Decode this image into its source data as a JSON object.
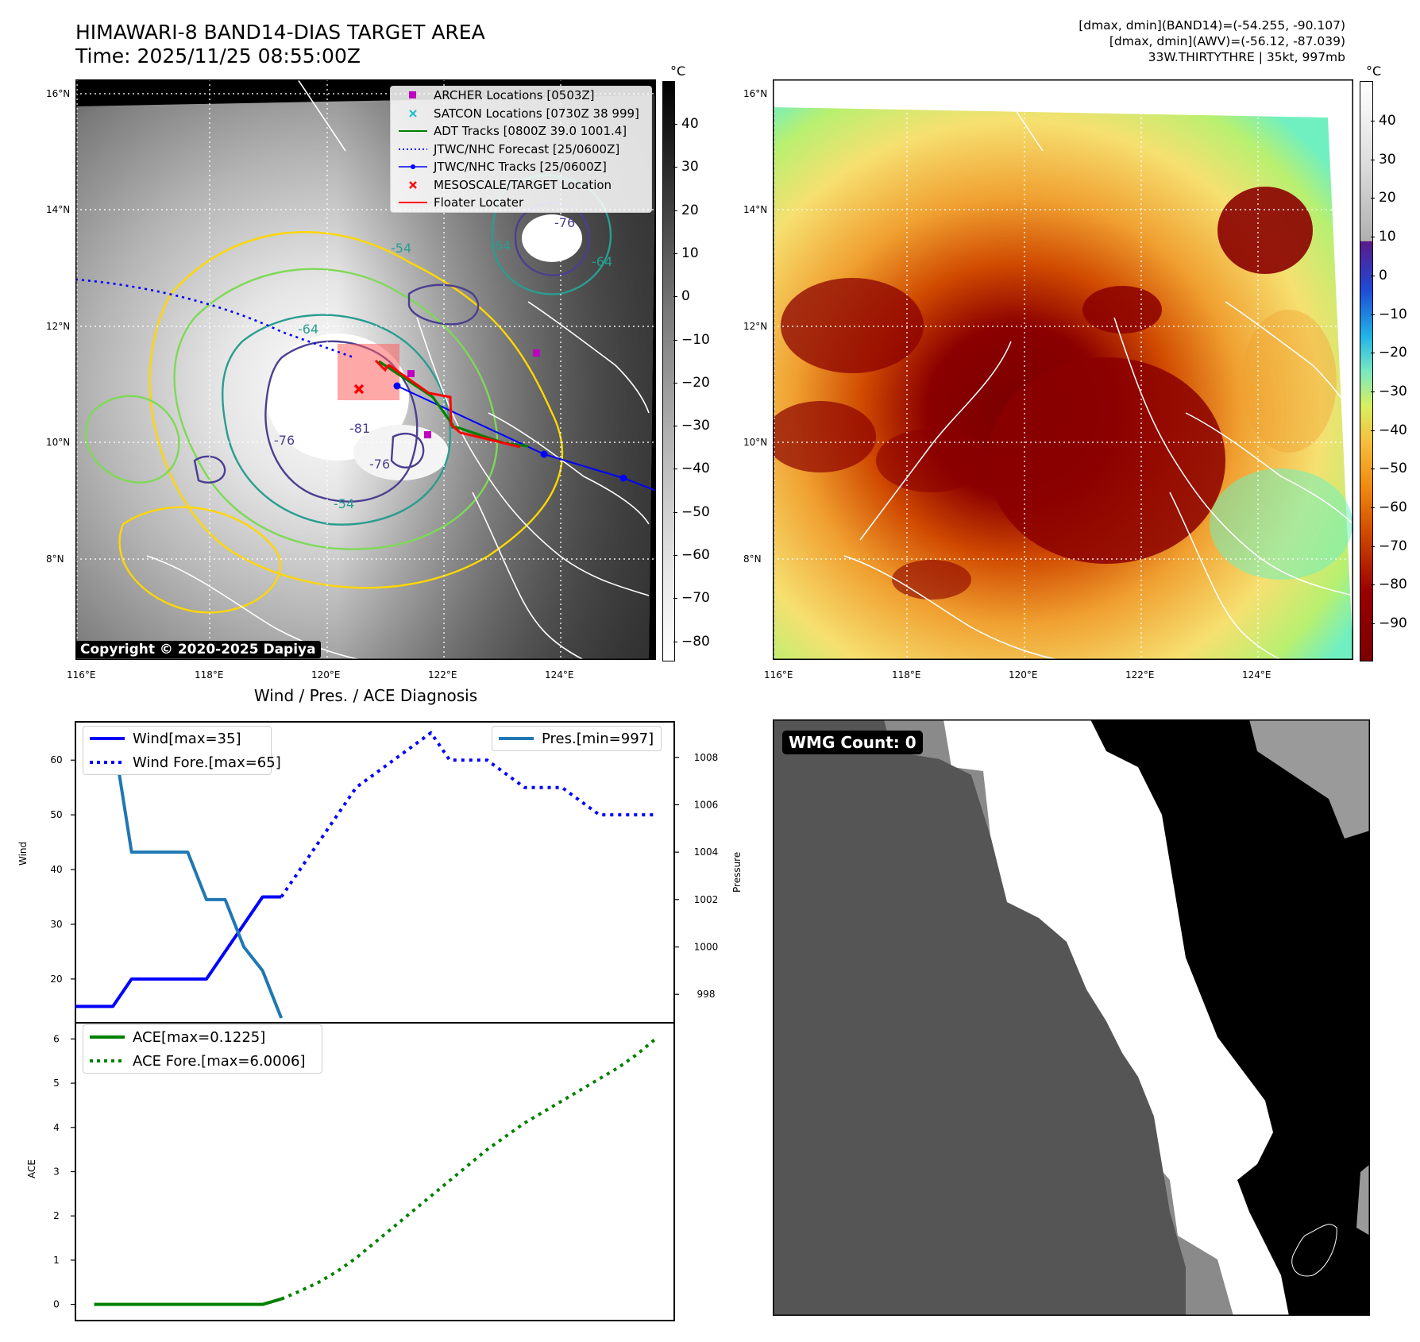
{
  "header": {
    "title_line1": "HIMAWARI-8 BAND14-DIAS TARGET AREA",
    "title_line2": "Time: 2025/11/25 08:55:00Z",
    "info_line1": "[dmax, dmin](BAND14)=(-54.255, -90.107)",
    "info_line2": "[dmax, dmin](AWV)=(-56.12, -87.039)",
    "info_line3": "33W.THIRTYTHRE | 35kt, 997mb"
  },
  "map_axes": {
    "lat_ticks": [
      "16°N",
      "14°N",
      "12°N",
      "10°N",
      "8°N"
    ],
    "lon_ticks": [
      "116°E",
      "118°E",
      "120°E",
      "122°E",
      "124°E"
    ]
  },
  "band14_panel": {
    "copyright": "Copyright © 2020-2025 Dapiya",
    "colorbar_unit": "°C",
    "colorbar_ticks": [
      "40",
      "30",
      "20",
      "10",
      "0",
      "−10",
      "−20",
      "−30",
      "−40",
      "−50",
      "−60",
      "−70",
      "−80"
    ],
    "contour_labels": [
      "-54",
      "-64",
      "-76",
      "-81",
      "-76",
      "-54",
      "-76",
      "-64",
      "-64"
    ],
    "legend": [
      {
        "label": "ARCHER Locations [0503Z]",
        "color": "#bf00bf",
        "marker": "square"
      },
      {
        "label": "SATCON Locations [0730Z 38 999]",
        "color": "#17becf",
        "marker": "x"
      },
      {
        "label": "ADT Tracks [0800Z 39.0 1001.4]",
        "color": "#008000",
        "marker": "line"
      },
      {
        "label": "JTWC/NHC Forecast [25/0600Z]",
        "color": "#0000ff",
        "marker": "dotted"
      },
      {
        "label": "JTWC/NHC Tracks [25/0600Z]",
        "color": "#0000ff",
        "marker": "line-dot"
      },
      {
        "label": "MESOSCALE/TARGET Location",
        "color": "#ff0000",
        "marker": "x"
      },
      {
        "label": "Floater Locater",
        "color": "#ff0000",
        "marker": "line"
      }
    ]
  },
  "awv_panel": {
    "colorbar_unit": "°C",
    "colorbar_ticks": [
      "40",
      "30",
      "20",
      "10",
      "0",
      "−10",
      "−20",
      "−30",
      "−40",
      "−50",
      "−60",
      "−70",
      "−80",
      "−90"
    ]
  },
  "wmg_panel": {
    "count_label": "WMG Count: 0"
  },
  "chart_data": [
    {
      "type": "line",
      "title": "Wind / Pres. / ACE Diagnosis",
      "ylabel": "Wind",
      "ylabel_right": "Pressure",
      "ylim": [
        12,
        67
      ],
      "ylim_right": [
        996.8,
        1009.5
      ],
      "yticks": [
        20,
        30,
        40,
        50,
        60
      ],
      "yticks_right": [
        998,
        1000,
        1002,
        1004,
        1006,
        1008
      ],
      "x": [
        0,
        1,
        2,
        3,
        4,
        5,
        6,
        7,
        8,
        9,
        10,
        11,
        12,
        13,
        14,
        15,
        16,
        17,
        18,
        19,
        20,
        21,
        22,
        23,
        24,
        25,
        26,
        27,
        28,
        29,
        30,
        31
      ],
      "series": [
        {
          "name": "Wind[max=35]",
          "color": "#0000ff",
          "style": "solid",
          "x": [
            0,
            1,
            2,
            3,
            4,
            5,
            6,
            7,
            8,
            9,
            10,
            11
          ],
          "values": [
            15,
            15,
            15,
            20,
            20,
            20,
            20,
            20,
            25,
            30,
            35,
            35
          ]
        },
        {
          "name": "Wind Fore.[max=65]",
          "color": "#0000ff",
          "style": "dotted",
          "x": [
            11,
            12,
            13,
            14,
            15,
            16,
            17,
            18,
            19,
            20,
            21,
            22,
            23,
            24,
            25,
            26,
            27,
            28,
            29,
            30,
            31
          ],
          "values": [
            35,
            40,
            45,
            50,
            55,
            57.5,
            60,
            62.5,
            65,
            60,
            60,
            60,
            57.5,
            55,
            55,
            55,
            52.5,
            50,
            50,
            50,
            50
          ]
        },
        {
          "name": "Pres.[min=997]",
          "color": "#1f77b4",
          "style": "solid",
          "axis": "right",
          "x": [
            1,
            2,
            3,
            4,
            5,
            6,
            7,
            8,
            9,
            10,
            11
          ],
          "values": [
            1009,
            1009,
            1004,
            1004,
            1004,
            1004,
            1002,
            1002,
            1000,
            999,
            997
          ]
        }
      ]
    },
    {
      "type": "line",
      "ylabel": "ACE",
      "ylim": [
        -0.15,
        6.15
      ],
      "yticks": [
        0,
        1,
        2,
        3,
        4,
        5,
        6
      ],
      "series": [
        {
          "name": "ACE[max=0.1225]",
          "color": "#008000",
          "style": "solid",
          "x": [
            1,
            10,
            11
          ],
          "values": [
            0,
            0,
            0.1225
          ]
        },
        {
          "name": "ACE Fore.[max=6.0006]",
          "color": "#008000",
          "style": "dotted",
          "x": [
            11,
            12,
            13,
            14,
            15,
            16,
            17,
            18,
            19,
            20,
            21,
            22,
            23,
            24,
            25,
            26,
            27,
            28,
            29,
            30,
            31
          ],
          "values": [
            0.1225,
            0.3,
            0.5,
            0.75,
            1.05,
            1.4,
            1.75,
            2.1,
            2.45,
            2.8,
            3.15,
            3.5,
            3.8,
            4.1,
            4.35,
            4.6,
            4.85,
            5.1,
            5.35,
            5.65,
            6.0006
          ]
        }
      ]
    }
  ]
}
